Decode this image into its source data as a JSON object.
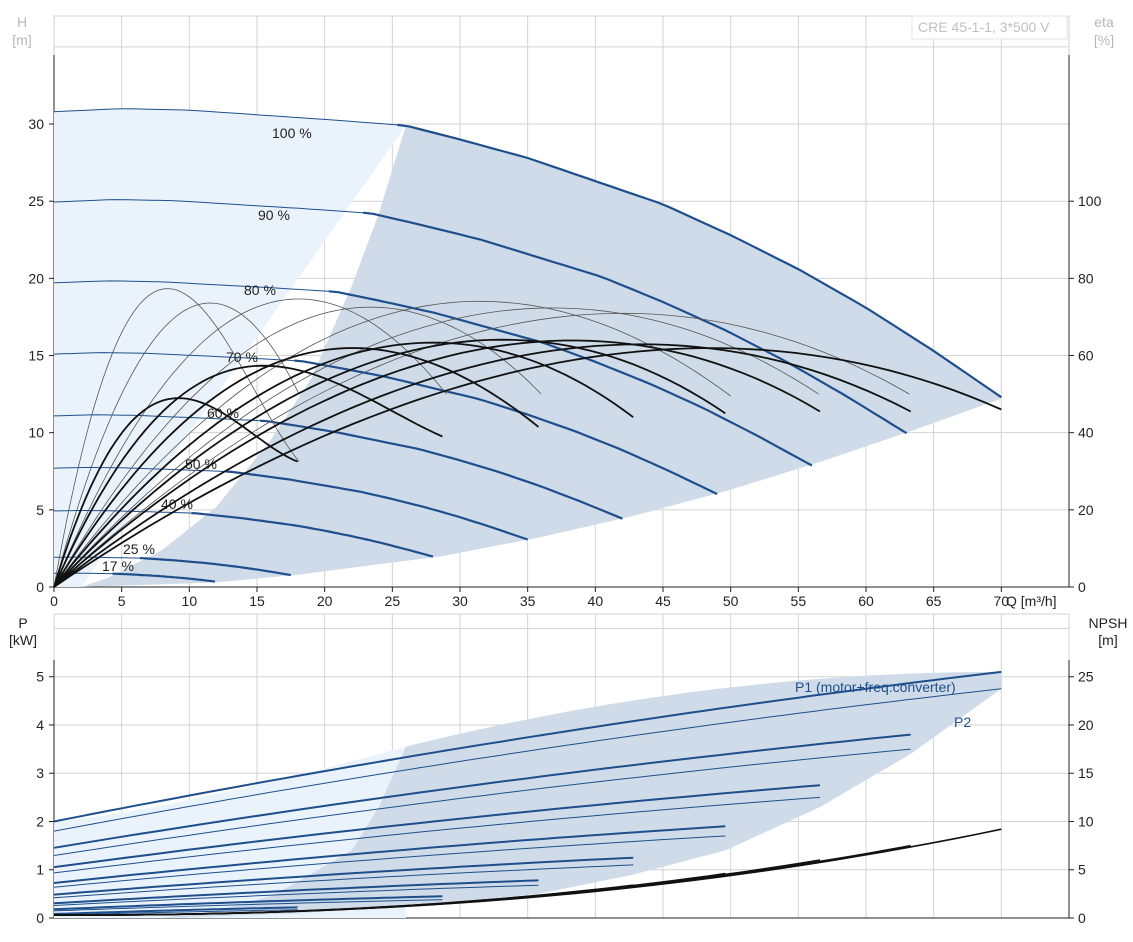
{
  "header": {
    "model_label": "CRE 45-1-1, 3*500 V",
    "left_axis_top": [
      "H",
      "[m]"
    ],
    "right_axis_top": [
      "eta",
      "[%]"
    ],
    "left_axis_bottom": [
      "P",
      "[kW]"
    ],
    "right_axis_bottom": [
      "NPSH",
      "[m]"
    ],
    "x_axis_label": "Q [m³/h]"
  },
  "colors": {
    "curve_blue": "#1e4f8c",
    "curve_black": "#111111",
    "zone_light": "#eaf3fc",
    "zone_dark": "#cfdbe8",
    "grid": "#d2d2d2"
  },
  "chart_data": [
    {
      "type": "line",
      "id": "head_efficiency",
      "x_ticks": [
        "0",
        "5",
        "10",
        "15",
        "20",
        "25",
        "30",
        "35",
        "40",
        "45",
        "50",
        "55",
        "60",
        "65",
        "70"
      ],
      "y_left_ticks": [
        "0",
        "5",
        "10",
        "15",
        "20",
        "25",
        "30"
      ],
      "y_right_ticks": [
        "0",
        "20",
        "40",
        "60",
        "80",
        "100"
      ],
      "xlim": [
        0,
        75
      ],
      "ylim_left": [
        0,
        37
      ],
      "ylim_right": [
        0,
        148
      ],
      "head_curves": [
        {
          "speed_label": "100 %",
          "ratio": 1.0
        },
        {
          "speed_label": "90 %",
          "ratio": 0.9
        },
        {
          "speed_label": "80 %",
          "ratio": 0.8
        },
        {
          "speed_label": "70 %",
          "ratio": 0.7
        },
        {
          "speed_label": "60 %",
          "ratio": 0.6
        },
        {
          "speed_label": "50 %",
          "ratio": 0.5
        },
        {
          "speed_label": "40 %",
          "ratio": 0.4
        },
        {
          "speed_label": "25 %",
          "ratio": 0.25
        },
        {
          "speed_label": "17 %",
          "ratio": 0.17
        }
      ],
      "head_points_100pct": [
        [
          0,
          30.8
        ],
        [
          5,
          31.0
        ],
        [
          10,
          30.9
        ],
        [
          15,
          30.6
        ],
        [
          20,
          30.3
        ],
        [
          26,
          29.9
        ],
        [
          30,
          29.0
        ],
        [
          35,
          27.8
        ],
        [
          40,
          26.3
        ],
        [
          45,
          24.8
        ],
        [
          50,
          22.8
        ],
        [
          55,
          20.6
        ],
        [
          60,
          18.1
        ],
        [
          65,
          15.3
        ],
        [
          70,
          12.3
        ]
      ],
      "efficiency_peaks": [
        {
          "peak_flow": 7.5,
          "peak_eta": 73.5,
          "end_flow": 18.1,
          "end_eta": 32.5,
          "bold": false
        },
        {
          "peak_flow": 11.5,
          "peak_eta": 73.5,
          "end_flow": 18.1,
          "end_eta": 50.0,
          "bold": false
        },
        {
          "peak_flow": 17.5,
          "peak_eta": 73.5,
          "end_flow": 29.0,
          "end_eta": 50.0,
          "bold": false
        },
        {
          "peak_flow": 24.0,
          "peak_eta": 73.5,
          "end_flow": 36.0,
          "end_eta": 50.0,
          "bold": false
        },
        {
          "peak_flow": 31.0,
          "peak_eta": 73.5,
          "end_flow": 50.0,
          "end_eta": 49.5,
          "bold": false
        },
        {
          "peak_flow": 38.0,
          "peak_eta": 73.5,
          "end_flow": 56.5,
          "end_eta": 50.0,
          "bold": false
        },
        {
          "peak_flow": 45.0,
          "peak_eta": 73.5,
          "end_flow": 63.2,
          "end_eta": 50.0,
          "bold": false
        },
        {
          "peak_flow": 8.0,
          "peak_eta": 46.0,
          "end_flow": 18.0,
          "end_eta": 32.5,
          "bold": true
        },
        {
          "peak_flow": 13.5,
          "peak_eta": 54.0,
          "end_flow": 28.7,
          "end_eta": 39.0,
          "bold": true
        },
        {
          "peak_flow": 21.0,
          "peak_eta": 60.5,
          "end_flow": 35.8,
          "end_eta": 41.5,
          "bold": true
        },
        {
          "peak_flow": 29.0,
          "peak_eta": 64.5,
          "end_flow": 42.8,
          "end_eta": 44.0,
          "bold": true
        },
        {
          "peak_flow": 36.0,
          "peak_eta": 67.0,
          "end_flow": 49.6,
          "end_eta": 45.0,
          "bold": true
        },
        {
          "peak_flow": 43.0,
          "peak_eta": 68.0,
          "end_flow": 56.6,
          "end_eta": 45.5,
          "bold": true
        },
        {
          "peak_flow": 50.0,
          "peak_eta": 68.0,
          "end_flow": 63.3,
          "end_eta": 45.5,
          "bold": true
        },
        {
          "peak_flow": 56.0,
          "peak_eta": 67.0,
          "end_flow": 70.0,
          "end_eta": 46.0,
          "bold": true
        }
      ]
    },
    {
      "type": "line",
      "id": "power_npsh",
      "x_ticks": [
        "0",
        "5",
        "10",
        "15",
        "20",
        "25",
        "30",
        "35",
        "40",
        "45",
        "50",
        "55",
        "60",
        "65",
        "70"
      ],
      "y_left_ticks": [
        "0",
        "1",
        "2",
        "3",
        "4",
        "5"
      ],
      "y_right_ticks": [
        "0",
        "5",
        "10",
        "15",
        "20",
        "25"
      ],
      "xlim": [
        0,
        75
      ],
      "ylim_left": [
        0,
        6.3
      ],
      "ylim_right": [
        0,
        31.5
      ],
      "series": [
        {
          "name": "P1 (motor+freq.converter)",
          "start": 2.0,
          "end": 5.1,
          "end_flow": 70.0
        },
        {
          "name": "P2",
          "start": 1.8,
          "end": 4.75,
          "end_flow": 70.0
        }
      ],
      "speed_power_ends": [
        {
          "end_flow": 63.3,
          "p1_end": 3.8,
          "p2_end": 3.5
        },
        {
          "end_flow": 56.6,
          "p1_end": 2.75,
          "p2_end": 2.5
        },
        {
          "end_flow": 49.6,
          "p1_end": 1.9,
          "p2_end": 1.7
        },
        {
          "end_flow": 42.8,
          "p1_end": 1.25,
          "p2_end": 1.1
        },
        {
          "end_flow": 35.8,
          "p1_end": 0.78,
          "p2_end": 0.68
        },
        {
          "end_flow": 28.7,
          "p1_end": 0.45,
          "p2_end": 0.38
        },
        {
          "end_flow": 18.0,
          "p1_end": 0.22,
          "p2_end": 0.17
        }
      ],
      "npsh_curves": [
        {
          "end_flow": 70.0,
          "end_npsh": 9.2
        },
        {
          "end_flow": 63.3,
          "end_npsh": 7.5
        },
        {
          "end_flow": 56.6,
          "end_npsh": 6.0
        },
        {
          "end_flow": 49.6,
          "end_npsh": 4.6
        },
        {
          "end_flow": 42.8,
          "end_npsh": 3.4
        }
      ]
    }
  ]
}
